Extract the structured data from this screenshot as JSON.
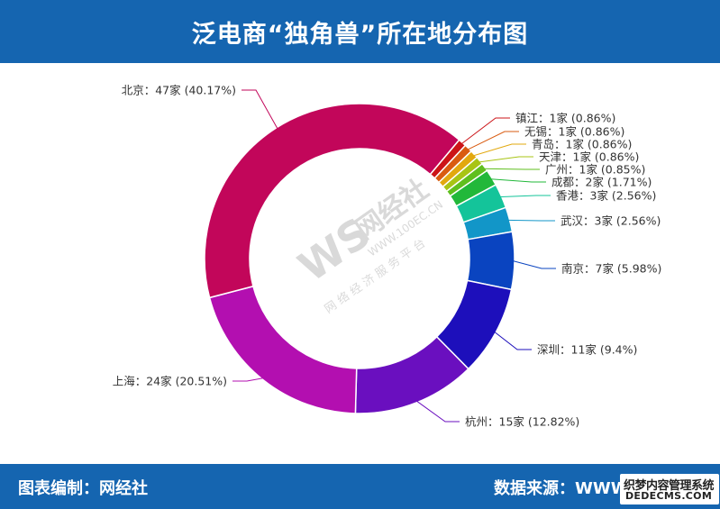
{
  "header": {
    "title": "泛电商“独角兽”所在地分布图"
  },
  "footer": {
    "left": "图表编制：网经社",
    "right": "数据来源：WWW.",
    "corner_watermark_line1": "织梦内容管理系统",
    "corner_watermark_line2": "DEDECMS.COM"
  },
  "watermark": {
    "logo": "WS",
    "brand": "网经社",
    "url": "WWW.100EC.CN",
    "slogan": "网 络 经 济 服 务 平 台"
  },
  "chart_data": {
    "type": "pie",
    "donut": true,
    "title": "泛电商“独角兽”所在地分布图",
    "unit": "家",
    "slices": [
      {
        "name": "镇江",
        "value": 1,
        "percent": 0.86,
        "label": "镇江：1家 (0.86%)",
        "color": "#cc1418"
      },
      {
        "name": "无锡",
        "value": 1,
        "percent": 0.86,
        "label": "无锡：1家 (0.86%)",
        "color": "#d95b10"
      },
      {
        "name": "青岛",
        "value": 1,
        "percent": 0.86,
        "label": "青岛：1家 (0.86%)",
        "color": "#e2a80e"
      },
      {
        "name": "天津",
        "value": 1,
        "percent": 0.86,
        "label": "天津：1家 (0.86%)",
        "color": "#a8c414"
      },
      {
        "name": "广州",
        "value": 1,
        "percent": 0.85,
        "label": "广州：1家 (0.85%)",
        "color": "#5fbf1e"
      },
      {
        "name": "成都",
        "value": 2,
        "percent": 1.71,
        "label": "成都：2家 (1.71%)",
        "color": "#22b83a"
      },
      {
        "name": "香港",
        "value": 3,
        "percent": 2.56,
        "label": "香港：3家 (2.56%)",
        "color": "#14c49a"
      },
      {
        "name": "武汉",
        "value": 3,
        "percent": 2.56,
        "label": "武汉：3家 (2.56%)",
        "color": "#1296c8"
      },
      {
        "name": "南京",
        "value": 7,
        "percent": 5.98,
        "label": "南京：7家 (5.98%)",
        "color": "#0a44c0"
      },
      {
        "name": "深圳",
        "value": 11,
        "percent": 9.4,
        "label": "深圳：11家 (9.4%)",
        "color": "#1d0fbb"
      },
      {
        "name": "杭州",
        "value": 15,
        "percent": 12.82,
        "label": "杭州：15家 (12.82%)",
        "color": "#6a0fbf"
      },
      {
        "name": "上海",
        "value": 24,
        "percent": 20.51,
        "label": "上海：24家 (20.51%)",
        "color": "#b30fb0"
      },
      {
        "name": "北京",
        "value": 47,
        "percent": 40.17,
        "label": "北京：47家 (40.17%)",
        "color": "#c2065a"
      }
    ]
  }
}
